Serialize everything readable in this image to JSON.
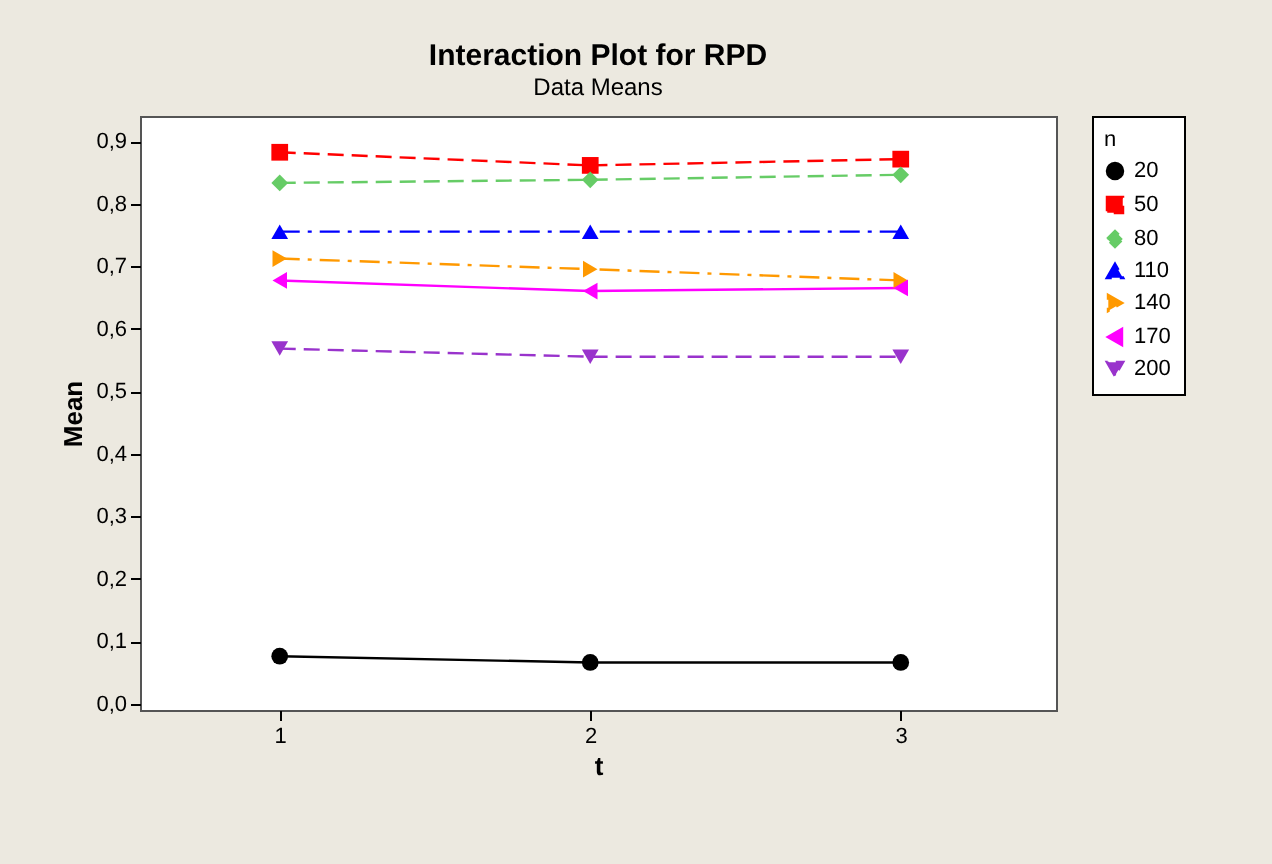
{
  "chart_data": {
    "type": "line",
    "title": "Interaction Plot for RPD",
    "subtitle": "Data Means",
    "xlabel": "t",
    "ylabel": "Mean",
    "legend_title": "n",
    "x": [
      1,
      2,
      3
    ],
    "series": [
      {
        "name": "20",
        "color": "#000000",
        "marker": "circle",
        "line_style": "solid",
        "values": [
          0.076,
          0.066,
          0.066
        ]
      },
      {
        "name": "50",
        "color": "#ff0000",
        "marker": "square",
        "line_style": "dashed",
        "values": [
          0.882,
          0.861,
          0.871
        ]
      },
      {
        "name": "80",
        "color": "#66cc66",
        "marker": "diamond",
        "line_style": "dashed",
        "values": [
          0.833,
          0.838,
          0.846
        ]
      },
      {
        "name": "110",
        "color": "#0000ff",
        "marker": "triangle-up",
        "line_style": "dashdot",
        "values": [
          0.755,
          0.755,
          0.755
        ]
      },
      {
        "name": "140",
        "color": "#ff9900",
        "marker": "triangle-right",
        "line_style": "dashdot",
        "values": [
          0.712,
          0.695,
          0.677
        ]
      },
      {
        "name": "170",
        "color": "#ff00ff",
        "marker": "triangle-left",
        "line_style": "solid",
        "values": [
          0.677,
          0.66,
          0.665
        ]
      },
      {
        "name": "200",
        "color": "#9933cc",
        "marker": "triangle-down",
        "line_style": "dashed",
        "values": [
          0.568,
          0.555,
          0.555
        ]
      }
    ],
    "xlim": [
      0.55,
      3.5
    ],
    "xticks": [
      1,
      2,
      3
    ],
    "ylim": [
      -0.01,
      0.94
    ],
    "yticks": [
      {
        "value": 0,
        "label": "0,0"
      },
      {
        "value": 0.1,
        "label": "0,1"
      },
      {
        "value": 0.2,
        "label": "0,2"
      },
      {
        "value": 0.3,
        "label": "0,3"
      },
      {
        "value": 0.4,
        "label": "0,4"
      },
      {
        "value": 0.5,
        "label": "0,5"
      },
      {
        "value": 0.6,
        "label": "0,6"
      },
      {
        "value": 0.7,
        "label": "0,7"
      },
      {
        "value": 0.8,
        "label": "0,8"
      },
      {
        "value": 0.9,
        "label": "0,9"
      }
    ],
    "grid": false,
    "legend": "right"
  }
}
